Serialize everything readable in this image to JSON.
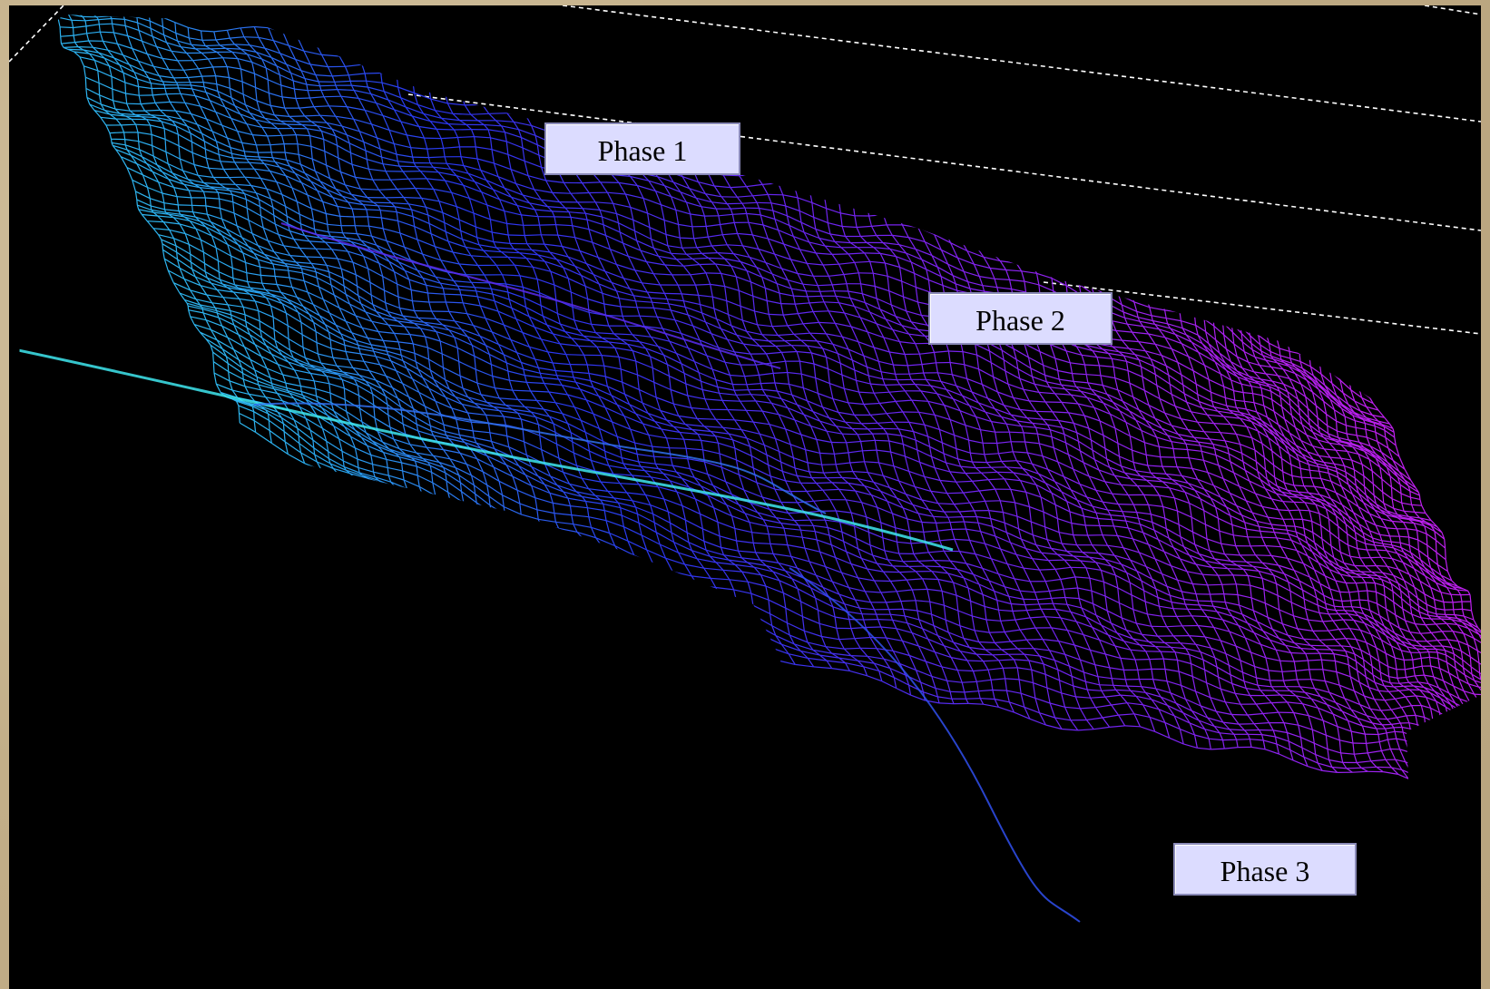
{
  "labels": {
    "phase1": "Phase 1",
    "phase2": "Phase 2",
    "phase3": "Phase 3"
  },
  "colors": {
    "background": "#000000",
    "mesh_cyan": "#3fe6e6",
    "mesh_blue": "#2a3cf0",
    "mesh_purple": "#a020f0",
    "guide_line": "#ffffff",
    "label_fill": "#dcdcff"
  }
}
